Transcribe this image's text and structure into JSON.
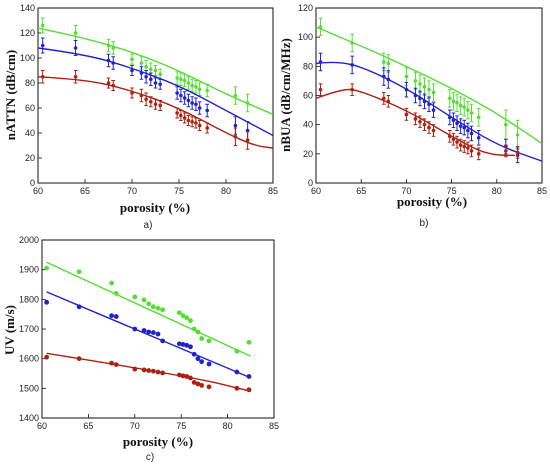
{
  "chart_data": [
    {
      "id": "a",
      "type": "scatter",
      "caption": "a)",
      "xlabel": "porosity (%)",
      "ylabel": "nATTN (dB/cm)",
      "xlim": [
        60,
        85
      ],
      "ylim": [
        0,
        140
      ],
      "xticks": [
        60,
        65,
        70,
        75,
        80,
        85
      ],
      "yticks": [
        0,
        20,
        40,
        60,
        80,
        100,
        120,
        140
      ],
      "grid": false,
      "legend": "none",
      "series": [
        {
          "color": "#55dd33",
          "x": [
            60.5,
            64.0,
            67.5,
            68.0,
            70.0,
            71.0,
            71.5,
            72.0,
            72.5,
            73.0,
            74.8,
            75.2,
            75.6,
            76.0,
            76.4,
            76.8,
            77.2,
            78.0,
            81.0,
            82.3
          ],
          "y": [
            126,
            120,
            110,
            108,
            99,
            96,
            93,
            91,
            90,
            87,
            84,
            83,
            82,
            80,
            78,
            77,
            75,
            74,
            70,
            64
          ],
          "err": [
            6,
            6,
            5,
            5,
            4,
            5,
            5,
            5,
            4,
            4,
            5,
            5,
            5,
            5,
            5,
            5,
            5,
            5,
            7,
            7
          ],
          "fit": [
            [
              60,
              124
            ],
            [
              65,
              116
            ],
            [
              70,
              105
            ],
            [
              75,
              90
            ],
            [
              80,
              71
            ],
            [
              85,
              55
            ]
          ]
        },
        {
          "color": "#2222cc",
          "x": [
            60.5,
            64.0,
            67.5,
            68.0,
            70.0,
            71.0,
            71.5,
            72.0,
            72.5,
            73.0,
            74.8,
            75.2,
            75.6,
            76.0,
            76.4,
            76.8,
            77.2,
            78.0,
            81.0,
            82.3
          ],
          "y": [
            110,
            108,
            98,
            96,
            90,
            88,
            85,
            83,
            80,
            79,
            72,
            70,
            68,
            66,
            64,
            63,
            60,
            58,
            46,
            42
          ],
          "err": [
            6,
            6,
            5,
            5,
            4,
            5,
            5,
            5,
            4,
            4,
            5,
            5,
            5,
            5,
            5,
            5,
            5,
            5,
            7,
            7
          ],
          "fit": [
            [
              60,
              108
            ],
            [
              65,
              103
            ],
            [
              70,
              92
            ],
            [
              75,
              78
            ],
            [
              80,
              58
            ],
            [
              85,
              38
            ]
          ]
        },
        {
          "color": "#aa2211",
          "x": [
            60.5,
            64.0,
            67.5,
            68.0,
            70.0,
            71.0,
            71.5,
            72.0,
            72.5,
            73.0,
            74.8,
            75.2,
            75.6,
            76.0,
            76.4,
            76.8,
            77.2,
            78.0,
            81.0,
            82.3
          ],
          "y": [
            85,
            85,
            80,
            78,
            72,
            70,
            67,
            65,
            63,
            62,
            56,
            54,
            52,
            50,
            49,
            48,
            46,
            44,
            37,
            34
          ],
          "err": [
            5,
            5,
            4,
            4,
            4,
            5,
            5,
            4,
            4,
            4,
            4,
            4,
            4,
            4,
            4,
            4,
            4,
            4,
            7,
            7
          ],
          "fit": [
            [
              60,
              85
            ],
            [
              65,
              83
            ],
            [
              70,
              74
            ],
            [
              75,
              60
            ],
            [
              80,
              40
            ],
            [
              83,
              30
            ],
            [
              85,
              28
            ]
          ]
        }
      ]
    },
    {
      "id": "b",
      "type": "scatter",
      "caption": "b)",
      "xlabel": "porosity (%)",
      "ylabel": "nBUA (dB/cm/MHz)",
      "xlim": [
        60,
        85
      ],
      "ylim": [
        0,
        120
      ],
      "xticks": [
        60,
        65,
        70,
        75,
        80,
        85
      ],
      "yticks": [
        0,
        20,
        40,
        60,
        80,
        100,
        120
      ],
      "grid": false,
      "legend": "none",
      "series": [
        {
          "color": "#55dd33",
          "x": [
            60.5,
            64.0,
            67.5,
            68.0,
            70.0,
            71.0,
            71.5,
            72.0,
            72.5,
            73.0,
            74.8,
            75.2,
            75.6,
            76.0,
            76.4,
            76.8,
            77.2,
            78.0,
            81.0,
            82.3
          ],
          "y": [
            107,
            96,
            83,
            82,
            73,
            70,
            68,
            66,
            64,
            62,
            58,
            56,
            55,
            53,
            52,
            50,
            48,
            45,
            40,
            33
          ],
          "err": [
            6,
            6,
            6,
            6,
            6,
            6,
            6,
            6,
            6,
            6,
            6,
            6,
            6,
            6,
            6,
            6,
            6,
            6,
            10,
            10
          ],
          "fit": [
            [
              60,
              107
            ],
            [
              65,
              94
            ],
            [
              70,
              80
            ],
            [
              75,
              65
            ],
            [
              80,
              48
            ],
            [
              85,
              27
            ]
          ]
        },
        {
          "color": "#2222cc",
          "x": [
            60.5,
            64.0,
            67.5,
            68.0,
            70.0,
            71.0,
            71.5,
            72.0,
            72.5,
            73.0,
            74.8,
            75.2,
            75.6,
            76.0,
            76.4,
            76.8,
            77.2,
            78.0,
            81.0,
            82.3
          ],
          "y": [
            83,
            81,
            73,
            71,
            64,
            60,
            58,
            56,
            54,
            50,
            45,
            43,
            41,
            39,
            38,
            36,
            34,
            31,
            25,
            19
          ],
          "err": [
            6,
            6,
            6,
            6,
            5,
            5,
            5,
            5,
            5,
            5,
            5,
            5,
            5,
            5,
            5,
            5,
            5,
            5,
            5,
            5
          ],
          "fit": [
            [
              60,
              82
            ],
            [
              62,
              83.5
            ],
            [
              65,
              80
            ],
            [
              70,
              65
            ],
            [
              75,
              45
            ],
            [
              80,
              26
            ],
            [
              85,
              15
            ]
          ]
        },
        {
          "color": "#aa2211",
          "x": [
            60.5,
            64.0,
            67.5,
            68.0,
            70.0,
            71.0,
            71.5,
            72.0,
            72.5,
            73.0,
            74.8,
            75.2,
            75.6,
            76.0,
            76.4,
            76.8,
            77.2,
            78.0,
            81.0,
            82.3
          ],
          "y": [
            64,
            64,
            58,
            56,
            47,
            44,
            42,
            40,
            38,
            36,
            32,
            30,
            28,
            26,
            25,
            24,
            22,
            20,
            22,
            21
          ],
          "err": [
            4,
            4,
            4,
            4,
            4,
            4,
            4,
            4,
            4,
            4,
            4,
            4,
            4,
            4,
            4,
            4,
            4,
            4,
            4,
            4
          ],
          "fit": [
            [
              60,
              58
            ],
            [
              63,
              65
            ],
            [
              65,
              63
            ],
            [
              70,
              50
            ],
            [
              75,
              32
            ],
            [
              78,
              22
            ],
            [
              80,
              19
            ],
            [
              82,
              19
            ]
          ]
        }
      ]
    },
    {
      "id": "c",
      "type": "scatter",
      "caption": "c)",
      "xlabel": "porosity (%)",
      "ylabel": "UV (m/s)",
      "xlim": [
        60,
        85
      ],
      "ylim": [
        1400,
        2000
      ],
      "xticks": [
        60,
        65,
        70,
        75,
        80,
        85
      ],
      "yticks": [
        1400,
        1500,
        1600,
        1700,
        1800,
        1900,
        2000
      ],
      "grid": false,
      "legend": "none",
      "series": [
        {
          "color": "#55dd33",
          "x": [
            60.5,
            64.0,
            67.5,
            68.0,
            70.0,
            71.0,
            71.5,
            72.0,
            72.5,
            73.0,
            74.8,
            75.2,
            75.6,
            76.0,
            76.4,
            76.8,
            77.2,
            78.0,
            81.0,
            82.3
          ],
          "y": [
            1905,
            1893,
            1855,
            1820,
            1808,
            1798,
            1785,
            1775,
            1770,
            1765,
            1755,
            1745,
            1738,
            1728,
            1700,
            1690,
            1668,
            1660,
            1625,
            1655
          ],
          "fit": [
            [
              60.5,
              1925
            ],
            [
              82.5,
              1608
            ]
          ]
        },
        {
          "color": "#2222cc",
          "x": [
            60.5,
            64.0,
            67.5,
            68.0,
            70.0,
            71.0,
            71.5,
            72.0,
            72.5,
            73.0,
            74.8,
            75.2,
            75.6,
            76.0,
            76.4,
            76.8,
            77.2,
            78.0,
            81.0,
            82.3
          ],
          "y": [
            1790,
            1775,
            1745,
            1742,
            1700,
            1695,
            1690,
            1688,
            1683,
            1660,
            1650,
            1648,
            1645,
            1640,
            1615,
            1600,
            1590,
            1582,
            1555,
            1540
          ],
          "fit": [
            [
              60.5,
              1825
            ],
            [
              82.5,
              1535
            ]
          ]
        },
        {
          "color": "#aa2211",
          "x": [
            60.5,
            64.0,
            67.5,
            68.0,
            70.0,
            71.0,
            71.5,
            72.0,
            72.5,
            73.0,
            74.8,
            75.2,
            75.6,
            76.0,
            76.4,
            76.8,
            77.2,
            78.0,
            81.0,
            82.3
          ],
          "y": [
            1605,
            1600,
            1585,
            1580,
            1565,
            1562,
            1560,
            1558,
            1555,
            1552,
            1545,
            1542,
            1540,
            1535,
            1520,
            1515,
            1510,
            1505,
            1500,
            1495
          ],
          "fit": [
            [
              60.5,
              1618
            ],
            [
              76,
              1540
            ],
            [
              82.5,
              1490
            ]
          ]
        }
      ]
    }
  ]
}
